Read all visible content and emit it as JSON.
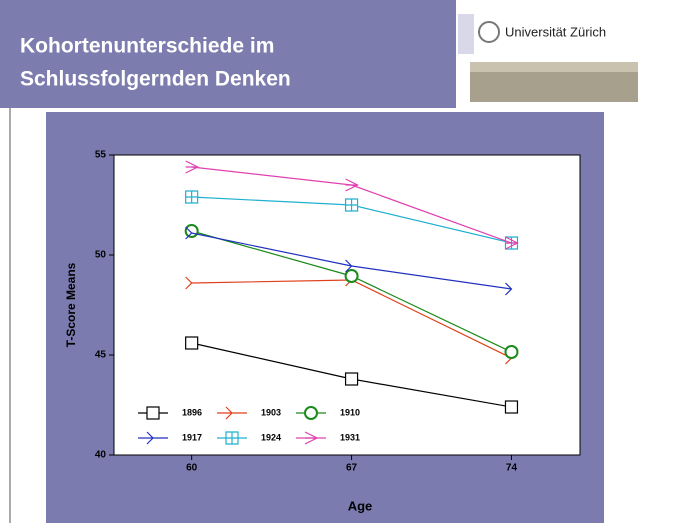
{
  "slide": {
    "title_lines": [
      "Kohortenunterschiede im",
      "Schlussfolgernden Denken"
    ],
    "logo_text": "Universität Zürich"
  },
  "chart_data": {
    "type": "line",
    "x_label": "Age",
    "y_label": "T-Score Means",
    "x": [
      60,
      67,
      74
    ],
    "xlim": [
      56.6,
      77
    ],
    "xticks": [
      60,
      67,
      74
    ],
    "ylim": [
      40,
      55
    ],
    "yticks": [
      40,
      45,
      50,
      55
    ],
    "series": [
      {
        "name": "1896",
        "color": "#000000",
        "marker": "square",
        "values": [
          45.6,
          43.8,
          42.4
        ]
      },
      {
        "name": "1903",
        "color": "#e0401a",
        "marker": "chevron",
        "values": [
          48.6,
          48.75,
          44.85
        ]
      },
      {
        "name": "1910",
        "color": "#1a8a1a",
        "marker": "circle",
        "values": [
          51.2,
          48.95,
          45.15
        ]
      },
      {
        "name": "1917",
        "color": "#2030c0",
        "marker": "tick",
        "values": [
          51.1,
          49.45,
          48.3
        ]
      },
      {
        "name": "1924",
        "color": "#20b0d0",
        "marker": "squareplus",
        "values": [
          52.9,
          52.5,
          50.6
        ]
      },
      {
        "name": "1931",
        "color": "#e040b0",
        "marker": "arrow",
        "values": [
          54.4,
          53.5,
          50.6
        ]
      }
    ]
  }
}
